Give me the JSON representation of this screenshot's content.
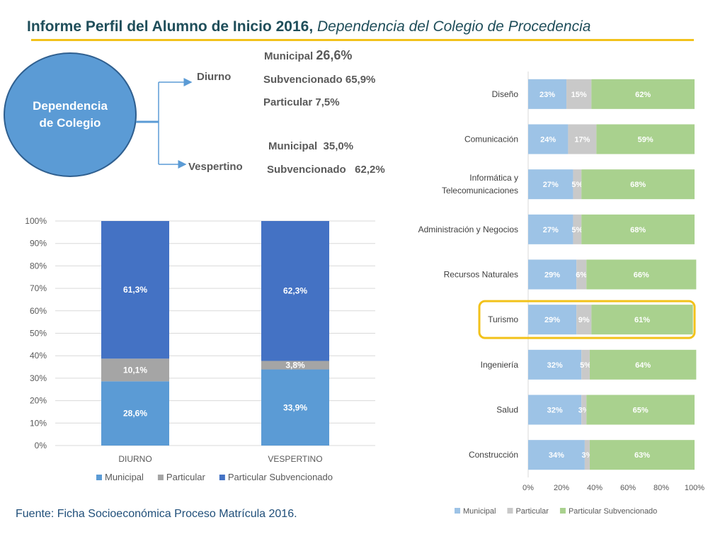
{
  "header": {
    "title_bold": "Informe Perfil del Alumno de Inicio 2016,",
    "title_italic": "Dependencia del Colegio de Procedencia"
  },
  "diagram": {
    "center": "Dependencia de Colegio",
    "diurno": {
      "label": "Diurno",
      "municipal_label": "Municipal",
      "municipal_value": "26,6%",
      "subvencionado": "Subvencionado 65,9%",
      "particular": "Particular 7,5%"
    },
    "vespertino": {
      "label": "Vespertino",
      "municipal": "Municipal  35,0%",
      "subvencionado": "Subvencionado   62,2%"
    }
  },
  "footer": {
    "source": "Fuente: Ficha Socioeconómica Proceso Matrícula 2016."
  },
  "colors": {
    "title": "#1f4e5a",
    "accent_rule": "#f2c21b",
    "left_municipal": "#5b9bd5",
    "left_particular": "#a5a5a5",
    "left_subvencionado": "#4472c4",
    "right_municipal": "#9dc3e6",
    "right_particular": "#c9c9c9",
    "right_subvencionado": "#a9d18e",
    "highlight": "#f2c21b"
  },
  "chart_data": [
    {
      "type": "bar",
      "stacked": true,
      "orientation": "vertical",
      "categories": [
        "DIURNO",
        "VESPERTINO"
      ],
      "series": [
        {
          "name": "Municipal",
          "values": [
            28.6,
            33.9
          ],
          "labels": [
            "28,6%",
            "33,9%"
          ]
        },
        {
          "name": "Particular",
          "values": [
            10.1,
            3.8
          ],
          "labels": [
            "10,1%",
            "3,8%"
          ]
        },
        {
          "name": "Particular Subvencionado",
          "values": [
            61.3,
            62.3
          ],
          "labels": [
            "61,3%",
            "62,3%"
          ]
        }
      ],
      "yticks": [
        "0%",
        "10%",
        "20%",
        "30%",
        "40%",
        "50%",
        "60%",
        "70%",
        "80%",
        "90%",
        "100%"
      ],
      "ylim": [
        0,
        100
      ],
      "grid": true,
      "legend_position": "bottom"
    },
    {
      "type": "bar",
      "stacked": true,
      "orientation": "horizontal",
      "categories": [
        "Diseño",
        "Comunicación",
        "Informática y Telecomunicaciones",
        "Administración y Negocios",
        "Recursos Naturales",
        "Turismo",
        "Ingeniería",
        "Salud",
        "Construcción"
      ],
      "series": [
        {
          "name": "Municipal",
          "values": [
            23,
            24,
            27,
            27,
            29,
            29,
            32,
            32,
            34
          ]
        },
        {
          "name": "Particular",
          "values": [
            15,
            17,
            5,
            5,
            6,
            9,
            5,
            3,
            3
          ]
        },
        {
          "name": "Particular Subvencionado",
          "values": [
            62,
            59,
            68,
            68,
            66,
            61,
            64,
            65,
            63
          ]
        }
      ],
      "highlighted_category": "Turismo",
      "xticks": [
        "0%",
        "20%",
        "40%",
        "60%",
        "80%",
        "100%"
      ],
      "xlim": [
        0,
        100
      ],
      "legend_position": "bottom"
    }
  ]
}
